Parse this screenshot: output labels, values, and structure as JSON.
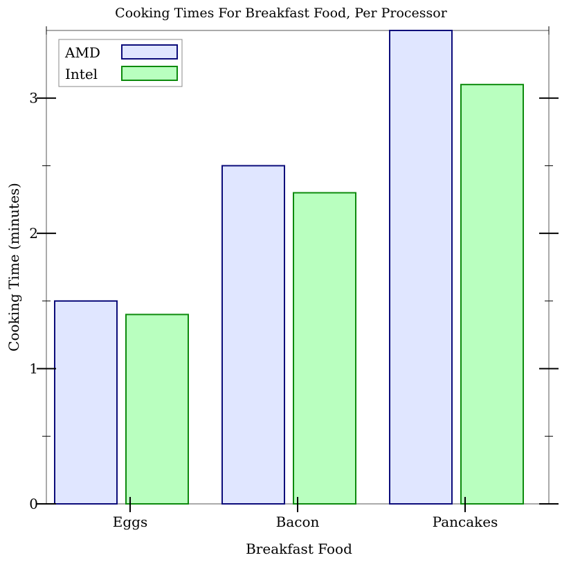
{
  "chart_data": {
    "type": "bar",
    "title": "Cooking Times For Breakfast Food, Per Processor",
    "xlabel": "Breakfast Food",
    "ylabel": "Cooking Time (minutes)",
    "categories": [
      "Eggs",
      "Bacon",
      "Pancakes"
    ],
    "series": [
      {
        "name": "AMD",
        "values": [
          1.5,
          2.5,
          3.5
        ],
        "fill": "#e0e6ff",
        "stroke": "#0b0b7a"
      },
      {
        "name": "Intel",
        "values": [
          1.4,
          2.3,
          3.1
        ],
        "fill": "#b9ffbf",
        "stroke": "#0c8a0c"
      }
    ],
    "ylim": [
      0,
      3.5
    ],
    "major_ticks": [
      0,
      1,
      2,
      3
    ],
    "major_tick_labels": [
      "0",
      "1",
      "2",
      "3"
    ],
    "minor_ticks": [
      0.5,
      1.5,
      2.5
    ],
    "grid": false,
    "legend_position": "top-left"
  }
}
